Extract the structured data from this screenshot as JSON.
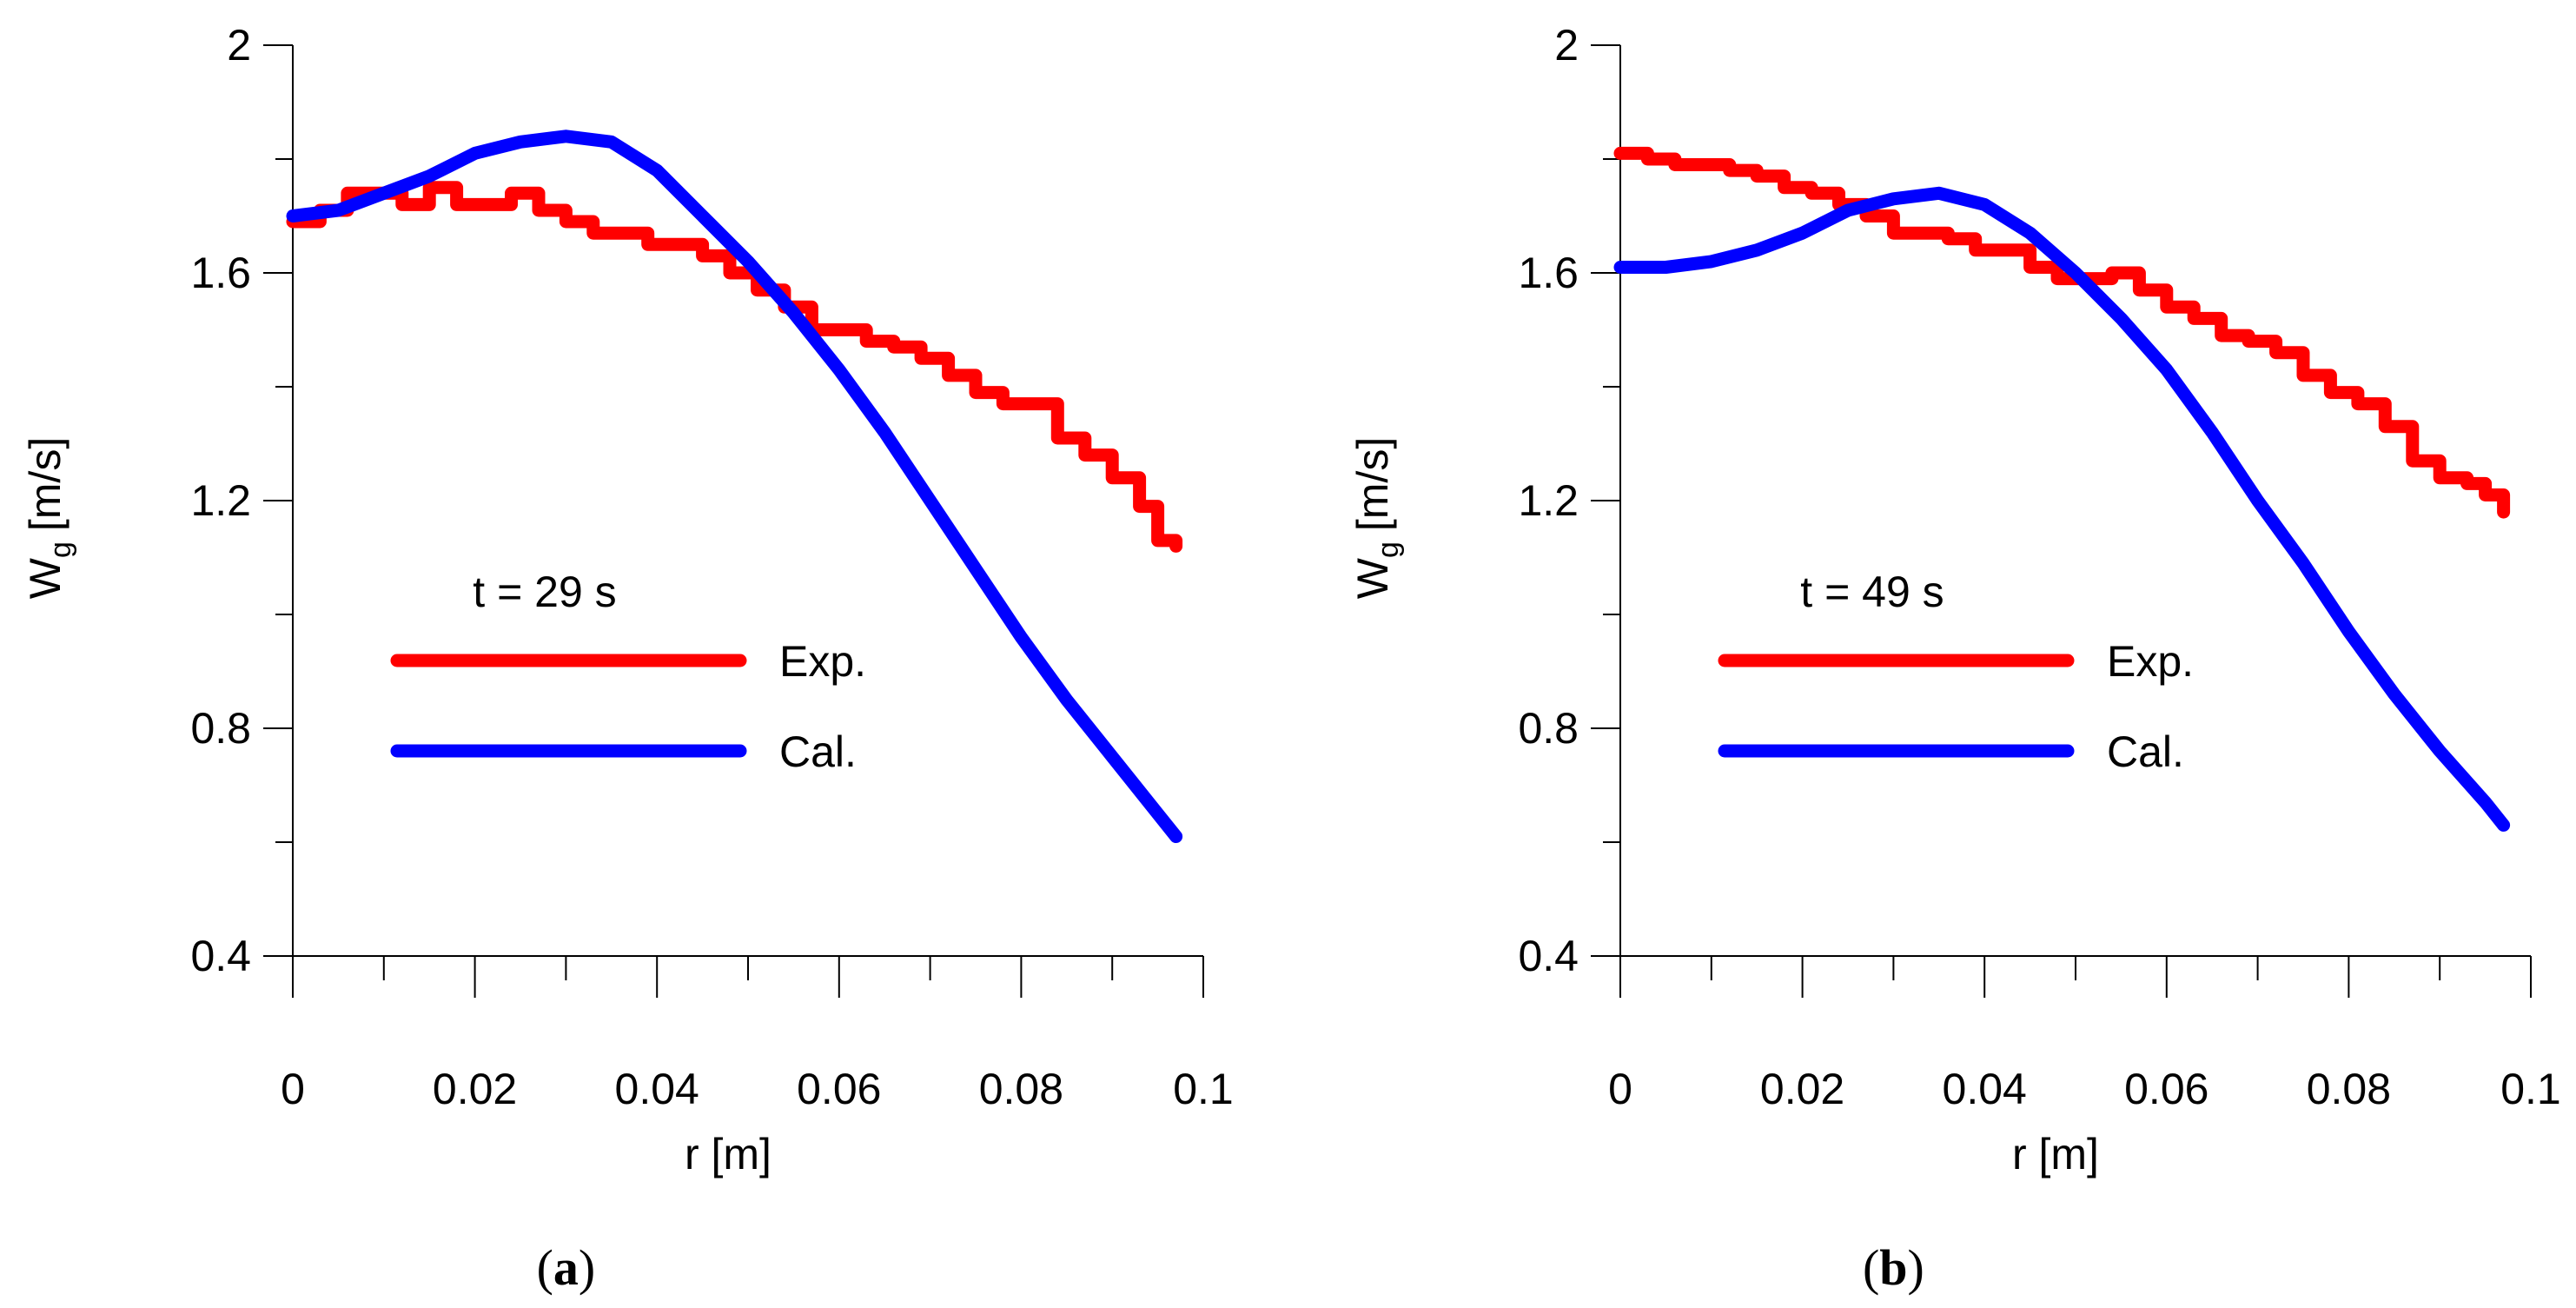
{
  "chart_data": [
    {
      "type": "line",
      "panel_label": "a",
      "annotation": "t = 29 s",
      "xlabel": "r [m]",
      "ylabel_main": "W",
      "ylabel_sub": "g",
      "ylabel_unit": "[m/s]",
      "xlim": [
        0,
        0.1
      ],
      "ylim": [
        0.4,
        2.0
      ],
      "xticks": [
        "0",
        "0.02",
        "0.04",
        "0.06",
        "0.08",
        "0.1"
      ],
      "yticks": [
        "0.4",
        "0.8",
        "1.2",
        "1.6",
        "2"
      ],
      "xtick_values": [
        0,
        0.02,
        0.04,
        0.06,
        0.08,
        0.1
      ],
      "ytick_values": [
        0.4,
        0.8,
        1.2,
        1.6,
        2.0
      ],
      "legend_location": "center-left",
      "grid": false,
      "series": [
        {
          "name": "Exp.",
          "color": "#ff0000",
          "style": "step",
          "x": [
            0,
            0.003,
            0.006,
            0.009,
            0.012,
            0.015,
            0.018,
            0.021,
            0.024,
            0.027,
            0.03,
            0.033,
            0.036,
            0.039,
            0.042,
            0.045,
            0.048,
            0.051,
            0.054,
            0.057,
            0.06,
            0.063,
            0.066,
            0.069,
            0.072,
            0.075,
            0.078,
            0.081,
            0.084,
            0.087,
            0.09,
            0.093,
            0.095,
            0.097
          ],
          "y": [
            1.69,
            1.71,
            1.74,
            1.74,
            1.72,
            1.75,
            1.72,
            1.72,
            1.74,
            1.71,
            1.69,
            1.67,
            1.67,
            1.65,
            1.65,
            1.63,
            1.6,
            1.57,
            1.54,
            1.5,
            1.5,
            1.48,
            1.47,
            1.45,
            1.42,
            1.39,
            1.37,
            1.37,
            1.31,
            1.28,
            1.24,
            1.19,
            1.13,
            1.12
          ]
        },
        {
          "name": "Cal.",
          "color": "#0000ff",
          "style": "smooth",
          "x": [
            0,
            0.005,
            0.01,
            0.015,
            0.02,
            0.025,
            0.03,
            0.035,
            0.04,
            0.045,
            0.05,
            0.055,
            0.06,
            0.065,
            0.07,
            0.075,
            0.08,
            0.085,
            0.09,
            0.095,
            0.097
          ],
          "y": [
            1.7,
            1.71,
            1.74,
            1.77,
            1.81,
            1.83,
            1.84,
            1.83,
            1.78,
            1.7,
            1.62,
            1.53,
            1.43,
            1.32,
            1.2,
            1.08,
            0.96,
            0.85,
            0.75,
            0.65,
            0.61
          ]
        }
      ]
    },
    {
      "type": "line",
      "panel_label": "b",
      "annotation": "t = 49 s",
      "xlabel": "r [m]",
      "ylabel_main": "W",
      "ylabel_sub": "g",
      "ylabel_unit": "[m/s]",
      "xlim": [
        0,
        0.1
      ],
      "ylim": [
        0.4,
        2.0
      ],
      "xticks": [
        "0",
        "0.02",
        "0.04",
        "0.06",
        "0.08",
        "0.1"
      ],
      "yticks": [
        "0.4",
        "0.8",
        "1.2",
        "1.6",
        "2"
      ],
      "xtick_values": [
        0,
        0.02,
        0.04,
        0.06,
        0.08,
        0.1
      ],
      "ytick_values": [
        0.4,
        0.8,
        1.2,
        1.6,
        2.0
      ],
      "legend_location": "center-left",
      "grid": false,
      "series": [
        {
          "name": "Exp.",
          "color": "#ff0000",
          "style": "step",
          "x": [
            0,
            0.003,
            0.006,
            0.009,
            0.012,
            0.015,
            0.018,
            0.021,
            0.024,
            0.027,
            0.03,
            0.033,
            0.036,
            0.039,
            0.042,
            0.045,
            0.048,
            0.051,
            0.054,
            0.057,
            0.06,
            0.063,
            0.066,
            0.069,
            0.072,
            0.075,
            0.078,
            0.081,
            0.084,
            0.087,
            0.09,
            0.093,
            0.095,
            0.097
          ],
          "y": [
            1.81,
            1.8,
            1.79,
            1.79,
            1.78,
            1.77,
            1.75,
            1.74,
            1.72,
            1.7,
            1.67,
            1.67,
            1.66,
            1.64,
            1.64,
            1.61,
            1.59,
            1.59,
            1.6,
            1.57,
            1.54,
            1.52,
            1.49,
            1.48,
            1.46,
            1.42,
            1.39,
            1.37,
            1.33,
            1.27,
            1.24,
            1.23,
            1.21,
            1.18
          ]
        },
        {
          "name": "Cal.",
          "color": "#0000ff",
          "style": "smooth",
          "x": [
            0,
            0.005,
            0.01,
            0.015,
            0.02,
            0.025,
            0.03,
            0.035,
            0.04,
            0.045,
            0.05,
            0.055,
            0.06,
            0.065,
            0.07,
            0.075,
            0.08,
            0.085,
            0.09,
            0.095,
            0.097
          ],
          "y": [
            1.61,
            1.61,
            1.62,
            1.64,
            1.67,
            1.71,
            1.73,
            1.74,
            1.72,
            1.67,
            1.6,
            1.52,
            1.43,
            1.32,
            1.2,
            1.09,
            0.97,
            0.86,
            0.76,
            0.67,
            0.63
          ]
        }
      ]
    }
  ]
}
